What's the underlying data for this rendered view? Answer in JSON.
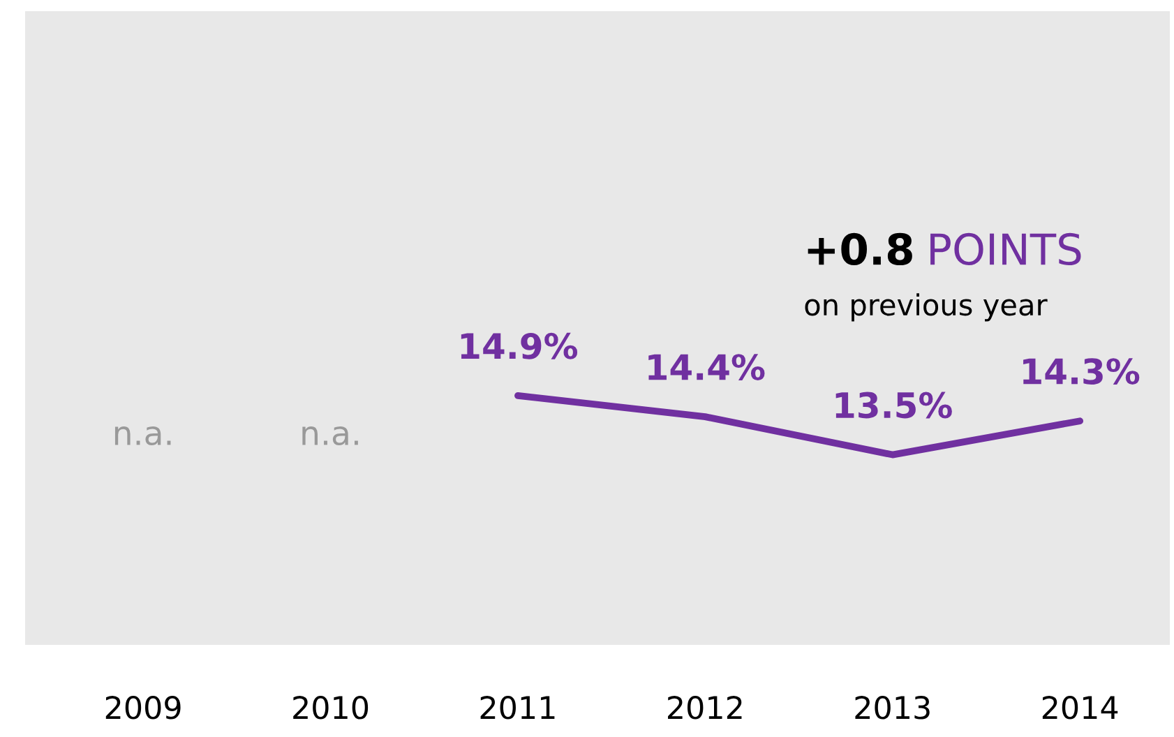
{
  "chart_data": {
    "type": "line",
    "categories": [
      "2009",
      "2010",
      "2011",
      "2012",
      "2013",
      "2014"
    ],
    "series": [
      {
        "color": "#7030a0",
        "values": [
          null,
          null,
          14.9,
          14.4,
          13.5,
          14.3
        ],
        "value_labels": [
          "n.a.",
          "n.a.",
          "14.9%",
          "14.4%",
          "13.5%",
          "14.3%"
        ]
      }
    ],
    "ylim": [
      9,
      24
    ],
    "tick_labels": "x",
    "grid": false,
    "legend": false,
    "marker": "none",
    "line_style": "solid",
    "annotations": [
      "+0.8",
      "POINTS",
      "on previous year"
    ]
  }
}
